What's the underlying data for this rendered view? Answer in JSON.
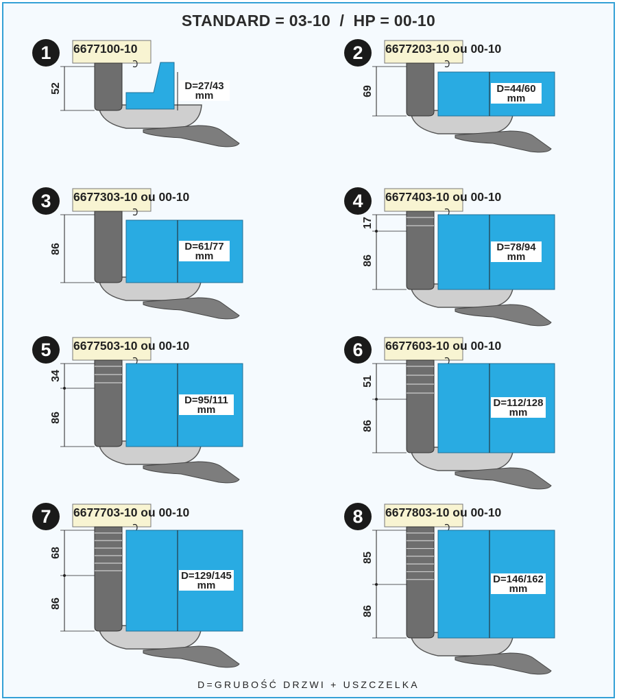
{
  "title": "STANDARD = 03-10  /  HP = 00-10",
  "footer": "D=GRUBOŚĆ DRZWI + USZCZELKA",
  "colors": {
    "border": "#32a0d6",
    "door": "#29abe2",
    "top_block": "#f8f4d2",
    "hinge_dark": "#8a8a8a",
    "arm": "#6e6e6e",
    "body": "#cfcfcf"
  },
  "panels": [
    {
      "number": "1",
      "code": "6677100-10",
      "d_label": "D=27/43",
      "unit": "mm",
      "dims": [
        "52"
      ]
    },
    {
      "number": "2",
      "code": "6677203-10 ou 00-10",
      "d_label": "D=44/60",
      "unit": "mm",
      "dims": [
        "69"
      ]
    },
    {
      "number": "3",
      "code": "6677303-10 ou 00-10",
      "d_label": "D=61/77",
      "unit": "mm",
      "dims": [
        "86"
      ]
    },
    {
      "number": "4",
      "code": "6677403-10 ou 00-10",
      "d_label": "D=78/94",
      "unit": "mm",
      "dims": [
        "17",
        "86"
      ]
    },
    {
      "number": "5",
      "code": "6677503-10 ou 00-10",
      "d_label": "D=95/111",
      "unit": "mm",
      "dims": [
        "34",
        "86"
      ]
    },
    {
      "number": "6",
      "code": "6677603-10 ou 00-10",
      "d_label": "D=112/128",
      "unit": "mm",
      "dims": [
        "51",
        "86"
      ]
    },
    {
      "number": "7",
      "code": "6677703-10 ou 00-10",
      "d_label": "D=129/145",
      "unit": "mm",
      "dims": [
        "68",
        "86"
      ]
    },
    {
      "number": "8",
      "code": "6677803-10 ou 00-10",
      "d_label": "D=146/162",
      "unit": "mm",
      "dims": [
        "85",
        "86"
      ]
    }
  ]
}
